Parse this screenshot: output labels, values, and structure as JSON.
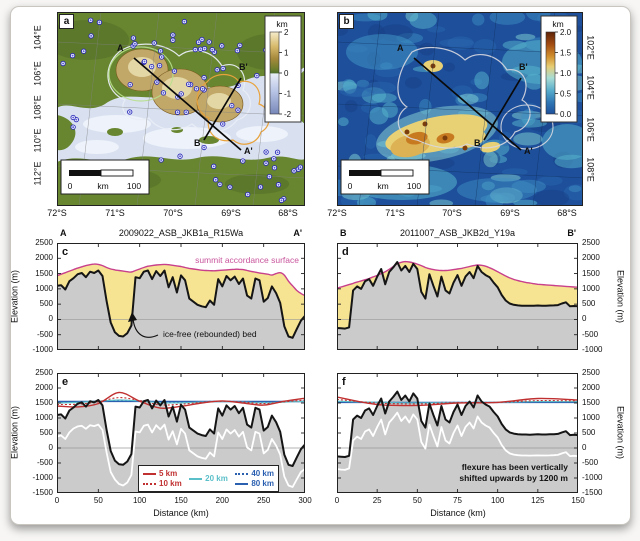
{
  "figure": {
    "panel_letters": {
      "a": "a",
      "b": "b",
      "c": "c",
      "d": "d",
      "e": "e",
      "f": "f"
    },
    "maps": {
      "a": {
        "lat_ticks": [
          "72°S",
          "71°S",
          "70°S",
          "69°S",
          "68°S"
        ],
        "lon_ticks": [
          "104°E",
          "106°E",
          "108°E",
          "110°E",
          "112°E"
        ],
        "colorbar": {
          "title": "km",
          "ticks": [
            "2",
            "1",
            "0",
            "-1",
            "-2"
          ]
        },
        "scalebar": {
          "start": "0",
          "unit": "km",
          "end": "100"
        },
        "transects": {
          "A": "A",
          "A2": "A'",
          "B": "B",
          "B2": "B'"
        }
      },
      "b": {
        "lat_ticks": [
          "72°S",
          "71°S",
          "70°S",
          "69°S",
          "68°S"
        ],
        "lon_ticks": [
          "102°E",
          "104°E",
          "106°E",
          "108°E"
        ],
        "colorbar": {
          "title": "km",
          "ticks": [
            "2.0",
            "1.5",
            "1.0",
            "0.5",
            "0.0"
          ]
        },
        "scalebar": {
          "start": "0",
          "unit": "km",
          "end": "100"
        },
        "transects": {
          "A": "A",
          "A2": "A'",
          "B": "B",
          "B2": "B'"
        }
      }
    },
    "profiles": {
      "c": {
        "start": "A",
        "end": "A'",
        "title": "2009022_ASB_JKB1a_R15Wa",
        "ylabel": "Elevation (m)",
        "surface_annotation": "summit accordance surface",
        "bed_annotation": "ice-free (rebounded) bed"
      },
      "d": {
        "start": "B",
        "end": "B'",
        "title": "2011007_ASB_JKB2d_Y19a",
        "ylabel": "Elevation (m)"
      },
      "e": {
        "xlabel": "Distance (km)",
        "ylabel": "Elevation (m)"
      },
      "f": {
        "xlabel": "Distance (km)",
        "ylabel": "Elevation (m)",
        "annotation_line1": "flexure has been vertically",
        "annotation_line2": "shifted upwards by 1200 m"
      }
    }
  },
  "colors": {
    "yellow_fill": "#f7e492",
    "gray_fill": "#cbcbcb",
    "bed": "#151515",
    "summit_line": "#c8408c",
    "flexure_red": "#c03030",
    "flexure_cyan": "#5bbfc9",
    "flexure_blue": "#2b5fb0",
    "ice_loaded": "#ffffff",
    "zero_line": "#9a9a9a"
  },
  "chart_data": {
    "panels": [
      {
        "id": "a",
        "type": "map",
        "content": "ice-free (rebounded) bed topography, km",
        "colorbar_ticks_km": [
          2,
          1,
          0,
          -1,
          -2
        ],
        "x_axis": [
          "72°S",
          "71°S",
          "70°S",
          "69°S",
          "68°S"
        ],
        "y_axis": [
          "104°E",
          "106°E",
          "108°E",
          "110°E",
          "112°E"
        ],
        "scalebar_km": [
          0,
          100
        ],
        "overlays": [
          "radar survey points",
          "transect A-A'",
          "transect B-B'",
          "highland outline contours"
        ]
      },
      {
        "id": "b",
        "type": "map",
        "content": "elevation, km",
        "colorbar_ticks_km": [
          2.0,
          1.5,
          1.0,
          0.5,
          0.0
        ],
        "x_axis": [
          "72°S",
          "71°S",
          "70°S",
          "69°S",
          "68°S"
        ],
        "y_axis": [
          "102°E",
          "104°E",
          "106°E",
          "108°E"
        ],
        "scalebar_km": [
          0,
          100
        ],
        "overlays": [
          "transect A-A'",
          "transect B-B'",
          "outline contour"
        ]
      },
      {
        "id": "c",
        "type": "area",
        "title": "2009022_ASB_JKB1a_R15Wa",
        "transect": "AA",
        "xlim": [
          0,
          300
        ],
        "ylim": [
          -1000,
          2500
        ],
        "xticks": [
          0,
          50,
          100,
          150,
          200,
          250,
          300
        ],
        "ytick_step": 500,
        "ylabel": "Elevation (m)",
        "series": [
          "bed",
          "summit_accordance"
        ],
        "annotations": [
          "summit accordance surface",
          "ice-free (rebounded) bed"
        ]
      },
      {
        "id": "d",
        "type": "area",
        "title": "2011007_ASB_JKB2d_Y19a",
        "transect": "BB",
        "xlim": [
          0,
          150
        ],
        "ylim": [
          -1000,
          2500
        ],
        "xticks": [
          0,
          25,
          50,
          75,
          100,
          125,
          150
        ],
        "ytick_step": 500,
        "ylabel": "Elevation (m)",
        "series": [
          "bed",
          "summit_accordance"
        ]
      },
      {
        "id": "e",
        "type": "line",
        "transect": "AA",
        "xlim": [
          0,
          300
        ],
        "ylim": [
          -1500,
          2500
        ],
        "xticks": [
          0,
          50,
          100,
          150,
          200,
          250,
          300
        ],
        "ytick_step": 500,
        "xlabel": "Distance (km)",
        "ylabel": "Elevation (m)",
        "series": [
          "bed",
          "ice_loaded_bed",
          "flexure_5km",
          "flexure_10km",
          "flexure_20km",
          "flexure_40km",
          "flexure_80km"
        ],
        "legend": [
          {
            "label": "5 km",
            "color": "#c03030",
            "dash": "solid"
          },
          {
            "label": "10 km",
            "color": "#c03030",
            "dash": "dotted"
          },
          {
            "label": "20 km",
            "color": "#5bbfc9",
            "dash": "solid"
          },
          {
            "label": "40 km",
            "color": "#2b5fb0",
            "dash": "dotted"
          },
          {
            "label": "80 km",
            "color": "#2b5fb0",
            "dash": "solid"
          }
        ]
      },
      {
        "id": "f",
        "type": "line",
        "transect": "BB",
        "xlim": [
          0,
          150
        ],
        "ylim": [
          -1500,
          2500
        ],
        "xticks": [
          0,
          25,
          50,
          75,
          100,
          125,
          150
        ],
        "ytick_step": 500,
        "xlabel": "Distance (km)",
        "ylabel": "Elevation (m)",
        "series": [
          "bed",
          "ice_loaded_bed",
          "flexure_5km",
          "flexure_10km",
          "flexure_20km",
          "flexure_40km",
          "flexure_80km"
        ],
        "annotation": "flexure has been vertically shifted upwards by 1200 m"
      }
    ],
    "transect_AA": {
      "x_start": 0,
      "x_step": 5,
      "bed_m": [
        1100,
        1120,
        980,
        1250,
        1350,
        1480,
        1520,
        1380,
        1560,
        1520,
        1600,
        1420,
        600,
        -100,
        -420,
        -540,
        -560,
        -450,
        -200,
        1380,
        1350,
        1560,
        1600,
        1320,
        1580,
        1420,
        1600,
        1050,
        1380,
        880,
        1440,
        1280,
        680,
        580,
        480,
        430,
        400,
        620,
        480,
        1320,
        1080,
        1420,
        1280,
        1400,
        1160,
        1340,
        780,
        680,
        1340,
        1280,
        580,
        700,
        1080,
        860,
        540,
        -220,
        -560,
        -600,
        -320,
        -40,
        120
      ],
      "summit_accordance_m": [
        1430,
        1480,
        1530,
        1580,
        1630,
        1680,
        1720,
        1760,
        1790,
        1810,
        1800,
        1760,
        1700,
        1650,
        1620,
        1600,
        1580,
        1560,
        1550,
        1600,
        1650,
        1700,
        1740,
        1760,
        1780,
        1790,
        1800,
        1790,
        1770,
        1750,
        1730,
        1700,
        1670,
        1650,
        1630,
        1610,
        1600,
        1595,
        1590,
        1600,
        1610,
        1620,
        1630,
        1640,
        1640,
        1630,
        1600,
        1570,
        1545,
        1520,
        1500,
        1480,
        1450,
        1500,
        1530,
        1450,
        1250,
        1100,
        950,
        850,
        780
      ],
      "ice_loaded_bed_m": [
        380,
        420,
        300,
        520,
        650,
        720,
        740,
        640,
        760,
        730,
        780,
        600,
        -150,
        -800,
        -1050,
        -1200,
        -1250,
        -1150,
        -900,
        550,
        520,
        740,
        780,
        520,
        760,
        620,
        780,
        280,
        560,
        120,
        640,
        480,
        -80,
        -180,
        -280,
        -330,
        -360,
        -150,
        -280,
        520,
        300,
        620,
        480,
        600,
        380,
        540,
        20,
        -80,
        540,
        480,
        -180,
        -60,
        300,
        80,
        -220,
        -950,
        -1250,
        -1300,
        -1050,
        -800,
        -700
      ],
      "flexure_x_step": 25,
      "flexure_m": {
        "5km": [
          1400,
          1370,
          1480,
          1850,
          1560,
          1330,
          1390,
          1500,
          1570,
          1500,
          1430,
          1560,
          1660
        ],
        "10km": [
          1450,
          1460,
          1540,
          1680,
          1580,
          1440,
          1460,
          1520,
          1560,
          1530,
          1480,
          1540,
          1600
        ],
        "20km": [
          1500,
          1520,
          1560,
          1600,
          1570,
          1510,
          1505,
          1530,
          1550,
          1530,
          1505,
          1530,
          1555
        ],
        "40km": [
          1530,
          1540,
          1560,
          1580,
          1570,
          1540,
          1538,
          1548,
          1555,
          1545,
          1535,
          1542,
          1552
        ],
        "80km": [
          1550,
          1550,
          1552,
          1554,
          1553,
          1550,
          1549,
          1550,
          1551,
          1550,
          1549,
          1550,
          1551
        ]
      }
    },
    "transect_BB": {
      "x_start": 0,
      "x_step": 2.5,
      "bed_m": [
        -280,
        -290,
        -300,
        -260,
        950,
        1080,
        1000,
        1250,
        1320,
        1100,
        1400,
        1650,
        1150,
        1550,
        1700,
        1880,
        1600,
        1750,
        1550,
        1820,
        1650,
        900,
        680,
        1480,
        1100,
        750,
        1400,
        950,
        850,
        1200,
        1450,
        1100,
        1400,
        1550,
        1350,
        1750,
        1550,
        1450,
        1380,
        1200,
        1050,
        800,
        620,
        520,
        480,
        460,
        450,
        450,
        445,
        450,
        455,
        450,
        450,
        455,
        460,
        470,
        520,
        560,
        430,
        440,
        430
      ],
      "summit_accordance_m": [
        1020,
        1060,
        1100,
        1140,
        1180,
        1220,
        1260,
        1300,
        1340,
        1390,
        1440,
        1500,
        1560,
        1640,
        1730,
        1820,
        1870,
        1890,
        1880,
        1850,
        1810,
        1760,
        1700,
        1660,
        1630,
        1610,
        1600,
        1600,
        1610,
        1630,
        1650,
        1670,
        1700,
        1730,
        1760,
        1780,
        1770,
        1740,
        1690,
        1630,
        1560,
        1490,
        1420,
        1360,
        1310,
        1270,
        1240,
        1210,
        1190,
        1170,
        1150,
        1140,
        1130,
        1120,
        1110,
        1100,
        1090,
        1080,
        1070,
        1060,
        1050
      ],
      "ice_loaded_bed_m": [
        -700,
        -720,
        -730,
        -680,
        250,
        380,
        300,
        550,
        620,
        400,
        700,
        950,
        450,
        850,
        1000,
        1180,
        900,
        1050,
        850,
        1120,
        950,
        200,
        -20,
        780,
        400,
        50,
        700,
        250,
        150,
        500,
        750,
        400,
        700,
        850,
        650,
        1050,
        850,
        750,
        680,
        500,
        350,
        100,
        -80,
        -180,
        -220,
        -240,
        -250,
        -250,
        -255,
        -250,
        -245,
        -250,
        -250,
        -245,
        -240,
        -230,
        -180,
        -140,
        -270,
        -260,
        -270
      ],
      "flexure_x_step": 25,
      "flexure_m": {
        "5km": [
          1700,
          1450,
          1420,
          1500,
          1520,
          1650,
          1600
        ],
        "10km": [
          1620,
          1500,
          1470,
          1510,
          1520,
          1580,
          1570
        ],
        "20km": [
          1560,
          1520,
          1500,
          1515,
          1520,
          1550,
          1545
        ],
        "40km": [
          1540,
          1525,
          1515,
          1520,
          1520,
          1535,
          1535
        ],
        "80km": [
          1520,
          1520,
          1520,
          1520,
          1520,
          1520,
          1520
        ]
      }
    }
  }
}
